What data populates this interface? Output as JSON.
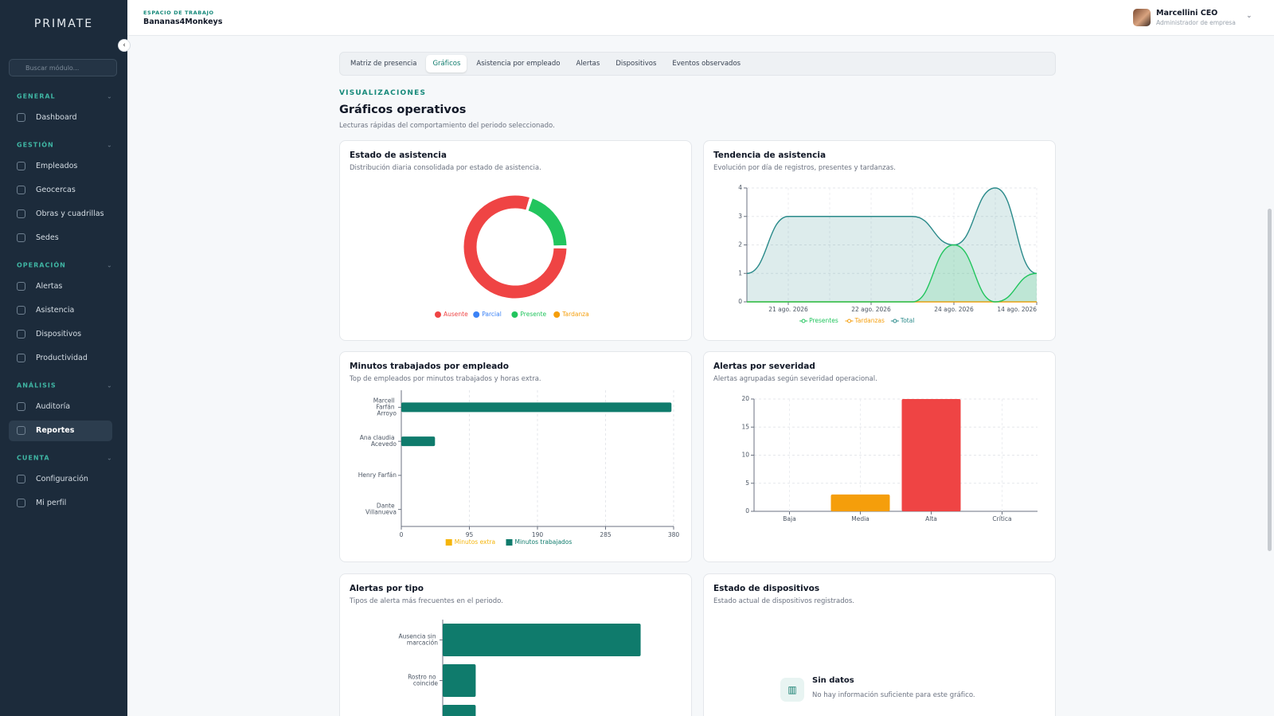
{
  "sidebar": {
    "brand": "PRIMATE",
    "search_placeholder": "Buscar módulo...",
    "groups": [
      {
        "title": "GENERAL",
        "items": [
          {
            "label": "Dashboard"
          }
        ]
      },
      {
        "title": "GESTIÓN",
        "items": [
          {
            "label": "Empleados"
          },
          {
            "label": "Geocercas"
          },
          {
            "label": "Obras y cuadrillas"
          },
          {
            "label": "Sedes"
          }
        ]
      },
      {
        "title": "OPERACIÓN",
        "items": [
          {
            "label": "Alertas"
          },
          {
            "label": "Asistencia"
          },
          {
            "label": "Dispositivos"
          },
          {
            "label": "Productividad"
          }
        ]
      },
      {
        "title": "ANÁLISIS",
        "items": [
          {
            "label": "Auditoría"
          },
          {
            "label": "Reportes",
            "active": true
          }
        ]
      },
      {
        "title": "CUENTA",
        "items": [
          {
            "label": "Configuración"
          },
          {
            "label": "Mi perfil"
          }
        ]
      }
    ]
  },
  "header": {
    "workspace_label": "ESPACIO DE TRABAJO",
    "workspace": "Bananas4Monkeys",
    "user_name": "Marcellini CEO",
    "user_role": "Administrador de empresa"
  },
  "tabs": [
    {
      "label": "Matriz de presencia"
    },
    {
      "label": "Gráficos",
      "active": true
    },
    {
      "label": "Asistencia por empleado"
    },
    {
      "label": "Alertas"
    },
    {
      "label": "Dispositivos"
    },
    {
      "label": "Eventos observados"
    }
  ],
  "section": {
    "eyebrow": "VISUALIZACIONES",
    "title": "Gráficos operativos",
    "subtitle": "Lecturas rápidas del comportamiento del periodo seleccionado."
  },
  "chart_data": [
    {
      "type": "donut",
      "title": "Estado de asistencia",
      "subtitle": "Distribución diaria consolidada por estado de asistencia.",
      "categories": [
        "Ausente",
        "Parcial",
        "Presente",
        "Tardanza"
      ],
      "values": [
        8,
        0,
        2,
        0
      ],
      "colors": [
        "#ef4444",
        "#3b82f6",
        "#22c55e",
        "#f59e0b"
      ]
    },
    {
      "type": "area",
      "title": "Tendencia de asistencia",
      "subtitle": "Evolución por día de registros, presentes y tardanzas.",
      "categories": [
        null,
        "21 ago. 2026",
        null,
        "22 ago. 2026",
        null,
        "24 ago. 2026",
        null,
        "14 ago. 2026"
      ],
      "series": [
        {
          "name": "Presentes",
          "color": "#22c55e",
          "values": [
            0,
            0,
            0,
            0,
            0,
            2,
            0,
            1
          ]
        },
        {
          "name": "Tardanzas",
          "color": "#f59e0b",
          "values": [
            0,
            0,
            0,
            0,
            0,
            0,
            0,
            0
          ]
        },
        {
          "name": "Total",
          "color": "#2a8a8a",
          "values": [
            1,
            3,
            3,
            3,
            3,
            2,
            4,
            1
          ]
        }
      ],
      "ylim": [
        0,
        4
      ],
      "yticks": [
        0,
        1,
        2,
        3,
        4
      ],
      "grid": true
    },
    {
      "type": "hbar",
      "title": "Minutos trabajados por empleado",
      "subtitle": "Top de empleados por minutos trabajados y horas extra.",
      "categories": [
        "Marcell Farfán Arroyo",
        "Ana claudia Acevedo",
        "Henry Farfán",
        "Dante Villanueva"
      ],
      "series": [
        {
          "name": "Minutos extra",
          "color": "#f5b50b",
          "values": [
            0,
            0,
            0,
            0
          ]
        },
        {
          "name": "Minutos trabajados",
          "color": "#0f7b6c",
          "values": [
            377,
            47,
            0,
            0
          ]
        }
      ],
      "xlim": [
        0,
        380
      ],
      "xticks": [
        0,
        95,
        190,
        285,
        380
      ],
      "grid": true
    },
    {
      "type": "bar",
      "title": "Alertas por severidad",
      "subtitle": "Alertas agrupadas según severidad operacional.",
      "categories": [
        "Baja",
        "Media",
        "Alta",
        "Crítica"
      ],
      "values": [
        0,
        3,
        20,
        0
      ],
      "colors": [
        null,
        "#f59e0b",
        "#ef4444",
        null
      ],
      "ylim": [
        0,
        20
      ],
      "yticks": [
        0,
        5,
        10,
        15,
        20
      ],
      "grid": true
    },
    {
      "type": "hbar",
      "title": "Alertas por tipo",
      "subtitle": "Tipos de alerta más frecuentes en el periodo.",
      "categories": [
        "Ausencia sin marcación",
        "Rostro no coincide",
        null
      ],
      "values": [
        12,
        2,
        2
      ],
      "color": "#0f7b6c",
      "xlim": [
        0,
        14
      ]
    }
  ],
  "empty_card": {
    "title": "Estado de dispositivos",
    "subtitle": "Estado actual de dispositivos registrados.",
    "empty_title": "Sin datos",
    "empty_text": "No hay información suficiente para este gráfico."
  }
}
